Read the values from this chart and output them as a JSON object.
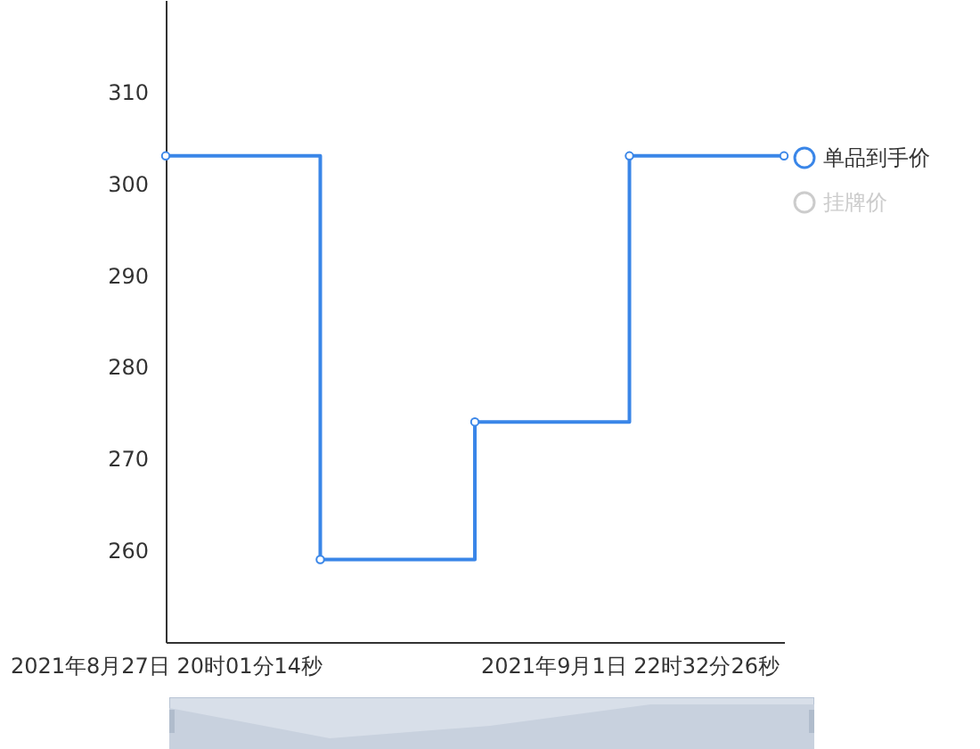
{
  "chart_data": {
    "type": "step",
    "categories": [
      "2021年8月27日 20时01分14秒",
      null,
      null,
      "2021年9月1日 22时32分26秒",
      null
    ],
    "series": [
      {
        "name": "单品到手价",
        "color": "#3a86e8",
        "values": [
          303,
          259,
          274,
          303,
          303
        ]
      },
      {
        "name": "挂牌价",
        "color": "#cccccc",
        "values": [
          null,
          null,
          null,
          null,
          null
        ]
      }
    ],
    "ylim": [
      250,
      320
    ],
    "yticks": [
      260,
      270,
      280,
      290,
      300,
      310
    ],
    "grid": false,
    "legend": "right",
    "marker": "circle"
  }
}
